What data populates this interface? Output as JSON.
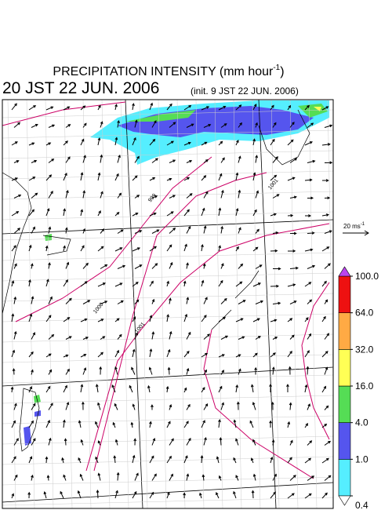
{
  "header": {
    "title": "PRECIPITATION INTENSITY (mm hour",
    "title_sup": "-1",
    "title_end": ")",
    "valid_time": "20 JST 22 JUN. 2006",
    "init_time": "(init. 9 JST 22 JUN. 2006)"
  },
  "wind_scale": {
    "label": "20 ms",
    "label_sup": "-1"
  },
  "isobar_labels": [
    "1001",
    "999",
    "1000",
    "1001"
  ],
  "colorbar": {
    "levels": [
      0.4,
      {
        "value": 1,
        "label": "1.0"
      },
      {
        "value": 4,
        "label": "4.0"
      },
      {
        "value": 16,
        "label": "16.0"
      },
      {
        "value": 32,
        "label": "32.0"
      },
      {
        "value": 64,
        "label": "64.0"
      },
      {
        "value": 100,
        "label": "100.0"
      }
    ],
    "colors": [
      "#55eeff",
      "#5555ee",
      "#55dd55",
      "#ffff55",
      "#ffaa44",
      "#ee1111"
    ],
    "over_color": "#bb44ee",
    "under_color": "#ffffff"
  }
}
